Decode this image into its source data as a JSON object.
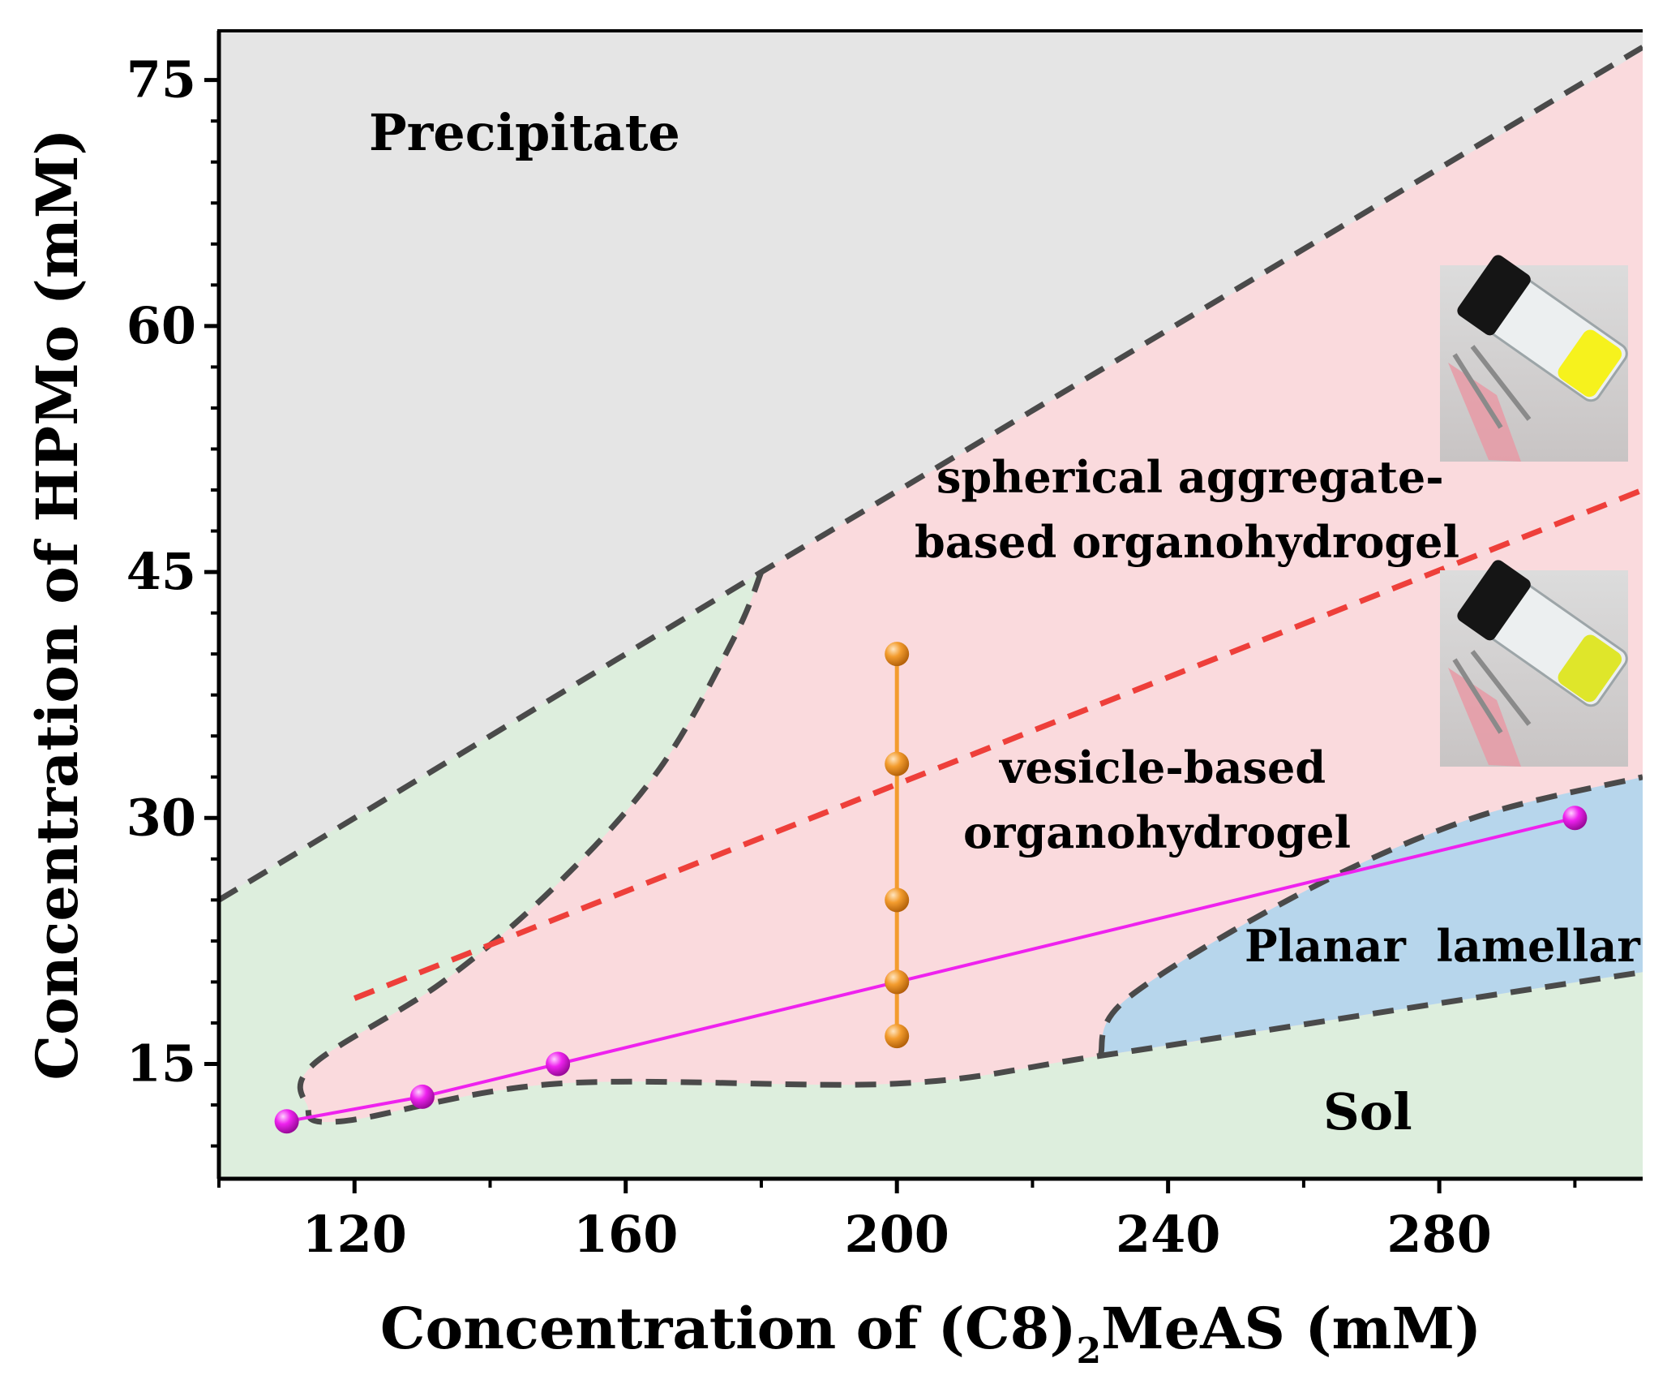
{
  "chart_data": {
    "type": "scatter",
    "title": "",
    "xlabel": {
      "main": "Concentration of (C8)",
      "sub": "2",
      "rest": "MeAS (mM)"
    },
    "ylabel": "Concentration of HPMo (mM)",
    "xlim": [
      100,
      310
    ],
    "ylim": [
      8,
      78
    ],
    "x_ticks": [
      120,
      160,
      200,
      240,
      280
    ],
    "x_tick_labels": [
      "120",
      "160",
      "200",
      "240",
      "280"
    ],
    "x_minor_ticks": [
      100,
      140,
      180,
      220,
      260,
      300
    ],
    "y_ticks": [
      15,
      30,
      45,
      60,
      75
    ],
    "y_tick_labels": [
      "15",
      "30",
      "45",
      "60",
      "75"
    ],
    "y_minor_ticks": [
      10,
      12.5,
      17.5,
      20,
      22.5,
      25,
      27.5,
      32.5,
      35,
      37.5,
      40,
      42.5,
      47.5,
      50,
      52.5,
      55,
      57.5,
      62.5,
      65,
      67.5,
      70,
      72.5
    ],
    "colors": {
      "precipitate": "#e5e5e5",
      "sol": "#ddeedd",
      "organohydrogel": "#fadadd",
      "lamellar": "#b7d6ec",
      "boundary": "#4a4a4a",
      "divider": "#ee3f3a",
      "magenta_series": "#ee22ee",
      "orange_series": "#f39c2e"
    },
    "regions": [
      {
        "name": "Precipitate",
        "label": "Precipitate"
      },
      {
        "name": "spherical",
        "label_lines": [
          "spherical aggregate-",
          "based organohydrogel"
        ]
      },
      {
        "name": "vesicle",
        "label_lines": [
          "vesicle-based",
          "organohydrogel"
        ]
      },
      {
        "name": "lamellar",
        "label": "Planar  lamellar"
      },
      {
        "name": "sol",
        "label": "Sol"
      }
    ],
    "boundaries": {
      "precipitate_line": [
        [
          100,
          25
        ],
        [
          180,
          45
        ],
        [
          310,
          77
        ]
      ],
      "sol_gel_boundary": [
        [
          180,
          45
        ],
        [
          176,
          41
        ],
        [
          165,
          33
        ],
        [
          150,
          26
        ],
        [
          133,
          20
        ],
        [
          114,
          15
        ],
        [
          113,
          12.5
        ],
        [
          118,
          11.5
        ],
        [
          150,
          13.8
        ],
        [
          200,
          13.8
        ],
        [
          230,
          15.5
        ],
        [
          280,
          18.7
        ],
        [
          310,
          20.6
        ]
      ],
      "lamellar_boundary": [
        [
          230,
          15.5
        ],
        [
          234,
          19
        ],
        [
          260,
          25.5
        ],
        [
          285,
          30
        ],
        [
          310,
          32.5
        ]
      ],
      "divider_line": [
        [
          120,
          19
        ],
        [
          310,
          50
        ]
      ]
    },
    "series": [
      {
        "name": "magenta",
        "x": [
          110,
          130,
          150,
          200,
          300
        ],
        "y": [
          11.5,
          13,
          15,
          20,
          30
        ]
      },
      {
        "name": "orange",
        "x": [
          200,
          200,
          200,
          200,
          200
        ],
        "y": [
          40,
          33.3,
          25,
          20,
          16.7
        ]
      }
    ],
    "insets": [
      {
        "name": "vial-photo-spherical",
        "description_color": "bright yellow gel"
      },
      {
        "name": "vial-photo-vesicle",
        "description_color": "yellow gel"
      }
    ]
  }
}
